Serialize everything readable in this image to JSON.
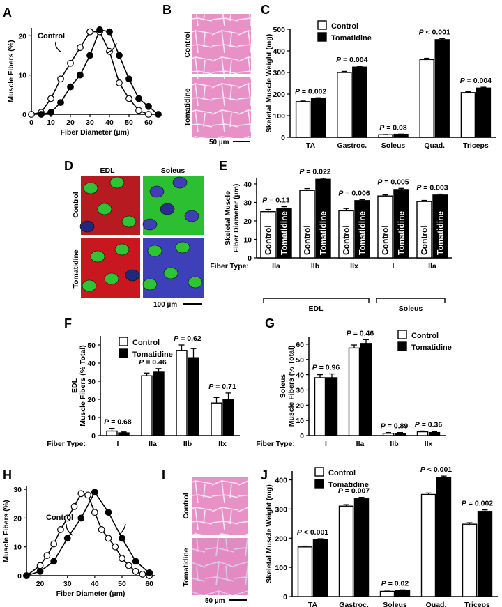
{
  "chart_data": [
    {
      "panel": "A",
      "type": "line",
      "title": "",
      "xlabel": "Fiber Diameter (µm)",
      "ylabel": "Muscle Fibers (%)",
      "xlim": [
        0,
        65
      ],
      "ylim": [
        0,
        22
      ],
      "xticks": [
        "0",
        "10",
        "20",
        "30",
        "40",
        "50",
        "60"
      ],
      "yticks": [
        "0",
        "10",
        "20"
      ],
      "series": [
        {
          "name": "Control",
          "label": "Control",
          "fill": "open",
          "x": [
            0,
            5,
            10,
            15,
            20,
            25,
            30,
            35,
            40,
            45,
            50,
            55,
            60
          ],
          "y": [
            0,
            0.5,
            4,
            9,
            13,
            17,
            21,
            21,
            16,
            8,
            4,
            1,
            0
          ]
        },
        {
          "name": "Tomatidine",
          "label": "Tomatidine",
          "fill": "filled",
          "x": [
            5,
            10,
            15,
            20,
            25,
            30,
            35,
            40,
            45,
            50,
            55,
            60,
            65
          ],
          "y": [
            0,
            0.5,
            3,
            7,
            10,
            15,
            21.5,
            21,
            15,
            9,
            4,
            2,
            0
          ]
        }
      ]
    },
    {
      "panel": "C",
      "type": "bar",
      "title": "",
      "ylabel": "Skeletal Muscle Weight (mg)",
      "ylim": [
        0,
        500
      ],
      "yticks": [
        "0",
        "100",
        "200",
        "300",
        "400",
        "500"
      ],
      "categories": [
        "TA",
        "Gastroc.",
        "Soleus",
        "Quad.",
        "Triceps"
      ],
      "series": [
        {
          "name": "Control",
          "fill": "open",
          "values": [
            165,
            300,
            12,
            360,
            207
          ],
          "errors": [
            3,
            5,
            1,
            6,
            4
          ]
        },
        {
          "name": "Tomatidine",
          "fill": "filled",
          "values": [
            180,
            325,
            14,
            452,
            228
          ],
          "errors": [
            3,
            4,
            1,
            5,
            4
          ]
        }
      ],
      "annotations": [
        "P = 0.002",
        "P = 0.004",
        "P = 0.08",
        "P < 0.001",
        "P = 0.004"
      ]
    },
    {
      "panel": "E",
      "type": "bar",
      "title": "",
      "ylabel": "Skeletal Muscle Fiber Diameter (µm)",
      "ylim": [
        0,
        43
      ],
      "yticks": [
        "0",
        "10",
        "20",
        "30",
        "40"
      ],
      "categories": [
        "IIa",
        "IIb",
        "IIx",
        "I",
        "IIa"
      ],
      "series": [
        {
          "name": "Control",
          "fill": "open",
          "values": [
            25,
            36.5,
            25.5,
            33.5,
            30.5
          ],
          "errors": [
            1.2,
            1,
            1.2,
            0.6,
            0.6
          ]
        },
        {
          "name": "Tomatidine",
          "fill": "filled",
          "values": [
            26.5,
            42.5,
            31,
            37,
            34
          ],
          "errors": [
            1.2,
            0.6,
            0.5,
            0.6,
            0.5
          ]
        }
      ],
      "bar_labels": [
        "Control",
        "Tomatidine"
      ],
      "annotations": [
        "P = 0.13",
        "P = 0.022",
        "P = 0.006",
        "P = 0.005",
        "P = 0.003"
      ],
      "axis_caption": "Fiber Type:",
      "groups": [
        "EDL",
        "Soleus"
      ]
    },
    {
      "panel": "F",
      "type": "bar",
      "title": "",
      "ylabel": "EDL Muscle Fibers (% Total)",
      "ylim": [
        0,
        55
      ],
      "yticks": [
        "0",
        "10",
        "20",
        "30",
        "40",
        "50"
      ],
      "categories": [
        "I",
        "IIa",
        "IIb",
        "IIx"
      ],
      "series": [
        {
          "name": "Control",
          "fill": "open",
          "values": [
            2.5,
            33,
            47,
            18
          ],
          "errors": [
            1.5,
            1.5,
            3,
            3
          ]
        },
        {
          "name": "Tomatidine",
          "fill": "filled",
          "values": [
            1.5,
            35,
            43,
            20
          ],
          "errors": [
            0.5,
            2,
            5,
            3.5
          ]
        }
      ],
      "annotations": [
        "P = 0.68",
        "P = 0.46",
        "P = 0.62",
        "P = 0.71"
      ],
      "axis_caption": "Fiber Type:"
    },
    {
      "panel": "G",
      "type": "bar",
      "title": "",
      "ylabel": "Soleus Muscle Fibers (% Total)",
      "ylim": [
        0,
        65
      ],
      "yticks": [
        "0",
        "10",
        "20",
        "30",
        "40",
        "50",
        "60"
      ],
      "categories": [
        "I",
        "IIa",
        "IIb",
        "IIx"
      ],
      "series": [
        {
          "name": "Control",
          "fill": "open",
          "values": [
            38,
            57.5,
            1.5,
            2.5
          ],
          "errors": [
            2,
            2,
            0.5,
            0.5
          ]
        },
        {
          "name": "Tomatidine",
          "fill": "filled",
          "values": [
            38,
            60.5,
            1.5,
            2
          ],
          "errors": [
            2.5,
            2.5,
            0.5,
            0.5
          ]
        }
      ],
      "annotations": [
        "P = 0.96",
        "P = 0.46",
        "P = 0.89",
        "P = 0.36"
      ],
      "axis_caption": "Fiber Type:"
    },
    {
      "panel": "H",
      "type": "line",
      "title": "",
      "xlabel": "Fiber Diameter (µm)",
      "ylabel": "Muscle Fibers (%)",
      "xlim": [
        15,
        62
      ],
      "ylim": [
        0,
        31
      ],
      "xticks": [
        "20",
        "30",
        "40",
        "50",
        "60"
      ],
      "yticks": [
        "0",
        "10",
        "20",
        "30"
      ],
      "series": [
        {
          "name": "Control",
          "label": "Control",
          "fill": "open",
          "x": [
            15,
            20,
            22.5,
            25,
            27.5,
            30,
            32.5,
            35,
            37.5,
            40,
            42.5,
            45,
            47.5,
            50,
            52.5,
            55,
            57.5,
            60
          ],
          "y": [
            0,
            3.5,
            7,
            11,
            16,
            20,
            24,
            28.5,
            28,
            22,
            16,
            13,
            10,
            6,
            3.5,
            1.5,
            0.5,
            0
          ]
        },
        {
          "name": "Tomatidine",
          "label": "Tomatidine",
          "fill": "filled",
          "x": [
            15,
            20,
            25,
            30,
            35,
            40,
            45,
            50,
            55,
            60
          ],
          "y": [
            0,
            1.5,
            5,
            13,
            20,
            29,
            22,
            13,
            5,
            1
          ]
        }
      ]
    },
    {
      "panel": "J",
      "type": "bar",
      "title": "",
      "ylabel": "Skeletal Muscle Weight (mg)",
      "ylim": [
        0,
        430
      ],
      "yticks": [
        "0",
        "100",
        "200",
        "300",
        "400"
      ],
      "categories": [
        "TA",
        "Gastroc.",
        "Soleus",
        "Quad.",
        "Triceps"
      ],
      "series": [
        {
          "name": "Control",
          "fill": "open",
          "values": [
            170,
            310,
            18,
            350,
            248
          ],
          "errors": [
            3,
            5,
            1,
            5,
            5
          ]
        },
        {
          "name": "Tomatidine",
          "fill": "filled",
          "values": [
            195,
            335,
            22,
            408,
            292
          ],
          "errors": [
            3,
            5,
            1,
            5,
            5
          ]
        }
      ],
      "annotations": [
        "P < 0.001",
        "P = 0.007",
        "P = 0.02",
        "P < 0.001",
        "P = 0.002"
      ]
    }
  ],
  "panel_letters": {
    "a": "A",
    "b": "B",
    "c": "C",
    "d": "D",
    "e": "E",
    "f": "F",
    "g": "G",
    "h": "H",
    "i": "I",
    "j": "J"
  },
  "legend": {
    "control": "Control",
    "tomatidine": "Tomatidine"
  },
  "micrographs": {
    "b_control": "Control",
    "b_tomatidine": "Tomatidine",
    "b_scale": "50 µm",
    "d_edl": "EDL",
    "d_soleus": "Soleus",
    "d_control": "Control",
    "d_tomatidine": "Tomatidine",
    "d_scale": "100 µm",
    "i_control": "Control",
    "i_tomatidine": "Tomatidine",
    "i_scale": "50 µm"
  },
  "colors": {
    "he_pink": "#e589c1",
    "he_bg": "#f4b8dd",
    "he_membrane": "#c9b5e0",
    "red": "#c0151d",
    "green": "#2ec433",
    "blue": "#3f3fb5",
    "ink": "#000000"
  }
}
